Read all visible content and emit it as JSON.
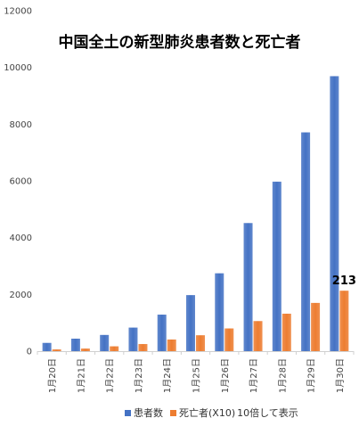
{
  "chart_data": {
    "type": "bar",
    "title": "中国全土の新型肺炎患者数と死亡者",
    "categories": [
      "1月20日",
      "1月21日",
      "1月22日",
      "1月23日",
      "1月24日",
      "1月25日",
      "1月26日",
      "1月27日",
      "1月28日",
      "1月29日",
      "1月30日"
    ],
    "series": [
      {
        "name": "患者数",
        "color": "#4472c4",
        "values": [
          291,
          440,
          571,
          830,
          1287,
          1975,
          2744,
          4515,
          5974,
          7711,
          9692
        ]
      },
      {
        "name": "死亡者(X10)",
        "color": "#ed7d31",
        "values": [
          60,
          90,
          170,
          250,
          410,
          560,
          800,
          1060,
          1320,
          1700,
          2130
        ]
      }
    ],
    "ylim": [
      0,
      12000
    ],
    "yticks": [
      0,
      2000,
      4000,
      6000,
      8000,
      10000,
      12000
    ],
    "grid": false,
    "legend_position": "bottom",
    "legend_note": "10倍して表示",
    "annotations": [
      {
        "series": 1,
        "category_index": 10,
        "text": "213"
      }
    ]
  }
}
